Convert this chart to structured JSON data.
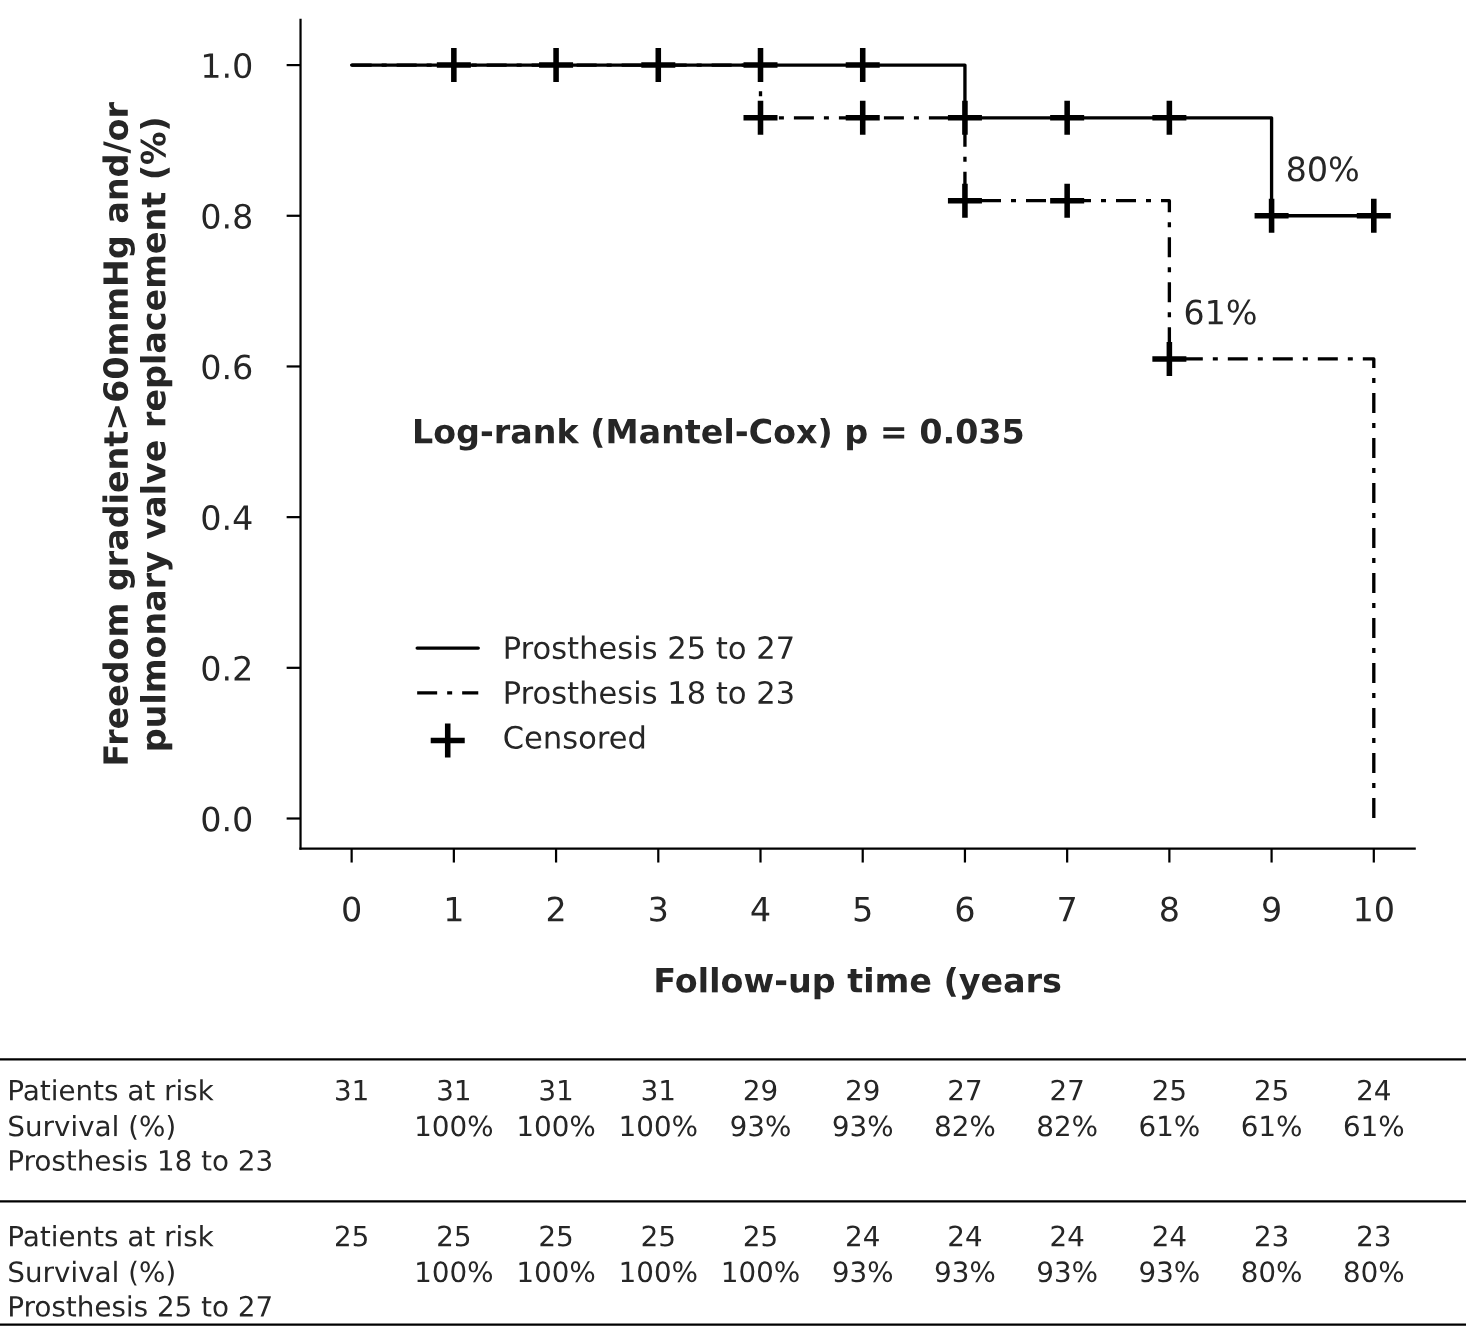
{
  "chart_data": {
    "type": "step",
    "xlabel": "Follow-up time (years",
    "ylabel": "Freedom gradient>60mmHg and/or\npulmonary valve replacement (%)",
    "x": [
      0,
      1,
      2,
      3,
      4,
      5,
      6,
      7,
      8,
      9,
      10
    ],
    "series": [
      {
        "name": "Prosthesis 25 to 27",
        "color": "#000000",
        "line_style": "solid",
        "values": [
          1.0,
          1.0,
          1.0,
          1.0,
          1.0,
          1.0,
          0.93,
          0.93,
          0.93,
          0.8,
          0.8
        ]
      },
      {
        "name": "Prosthesis 18 to 23",
        "color": "#000000",
        "line_style": "dashed",
        "values": [
          1.0,
          1.0,
          1.0,
          1.0,
          0.93,
          0.93,
          0.82,
          0.82,
          0.61,
          0.61,
          0.0
        ]
      },
      {
        "name": "Censored",
        "type": "scatter",
        "marker": "cross",
        "color": "#000000",
        "x": [
          1,
          2,
          3,
          4,
          5,
          6,
          7,
          8,
          9,
          10,
          4,
          5,
          6,
          7,
          8
        ],
        "values": [
          1.0,
          1.0,
          1.0,
          1.0,
          1.0,
          0.93,
          0.93,
          0.93,
          0.8,
          0.8,
          0.93,
          0.93,
          0.82,
          0.82,
          0.61
        ]
      }
    ],
    "xlim": [
      -0.5,
      10.4
    ],
    "xticks": [
      0,
      1,
      2,
      3,
      4,
      5,
      6,
      7,
      8,
      9,
      10
    ],
    "ylim": [
      -0.04,
      1.06
    ],
    "yticks": [
      {
        "value": 0,
        "label": "0.0"
      },
      {
        "value": 0.2,
        "label": "0.2"
      },
      {
        "value": 0.4,
        "label": "0.4"
      },
      {
        "value": 0.6,
        "label": "0.6"
      },
      {
        "value": 0.8,
        "label": "0.8"
      },
      {
        "value": 1.0,
        "label": "1.0"
      }
    ],
    "grid": false,
    "legend": "left",
    "annotations": [
      "Log-rank (Mantel-Cox) p = 0.035",
      {
        "text": "80%",
        "x": 9.5,
        "y": 0.8
      },
      {
        "text": "61%",
        "x": 8.5,
        "y": 0.61
      },
      "Patients at risk",
      "31",
      "31",
      "31",
      "31",
      "29",
      "29",
      "27",
      "27",
      "25",
      "25",
      "24",
      "Survival (%)",
      "100%",
      "100%",
      "100%",
      "93%",
      "93%",
      "82%",
      "82%",
      "61%",
      "61%",
      "61%",
      "Prosthesis 18 to 23",
      "Patients at risk",
      "25",
      "25",
      "25",
      "25",
      "25",
      "24",
      "24",
      "24",
      "24",
      "23",
      "23",
      "Survival (%)",
      "100%",
      "100%",
      "100%",
      "100%",
      "93%",
      "93%",
      "93%",
      "93%",
      "80%",
      "80%",
      "Prosthesis 25 to 27"
    ]
  }
}
